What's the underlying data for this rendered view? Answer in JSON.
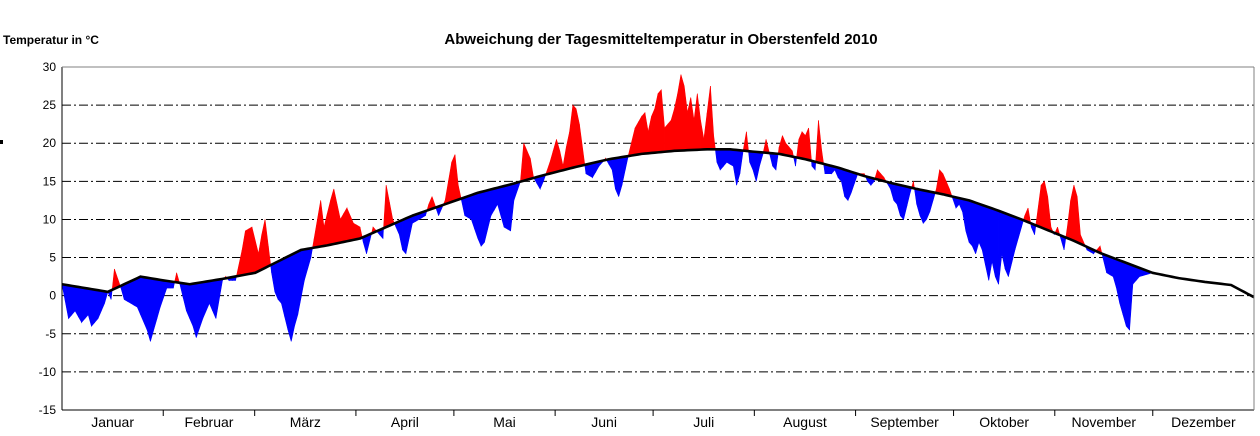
{
  "chart_data": {
    "type": "area",
    "title": "Abweichung der Tagesmitteltemperatur in Oberstenfeld 2010",
    "ylabel": "Temperatur in °C",
    "xlabel": "",
    "ylim": [
      -15,
      30
    ],
    "yticks": [
      30,
      25,
      20,
      15,
      10,
      5,
      0,
      -5,
      -10,
      -15
    ],
    "grid": true,
    "categories": [
      "Januar",
      "Februar",
      "März",
      "April",
      "Mai",
      "Juni",
      "Juli",
      "August",
      "September",
      "Oktober",
      "November",
      "Dezember"
    ],
    "days_in_month": [
      31,
      28,
      31,
      30,
      31,
      30,
      31,
      31,
      30,
      31,
      30,
      31
    ],
    "colors": {
      "above": "#ff0000",
      "below": "#0000ff",
      "mean_line": "#000000",
      "grid": "#000000",
      "axis": "#000000"
    },
    "series": [
      {
        "role": "mean",
        "points": [
          [
            1,
            1.5
          ],
          [
            15,
            0.5
          ],
          [
            25,
            2.5
          ],
          [
            32,
            2.0
          ],
          [
            40,
            1.5
          ],
          [
            50,
            2.2
          ],
          [
            60,
            3.0
          ],
          [
            67,
            4.5
          ],
          [
            74,
            6.0
          ],
          [
            82,
            6.6
          ],
          [
            92,
            7.5
          ],
          [
            100,
            9.0
          ],
          [
            108,
            10.5
          ],
          [
            118,
            12.0
          ],
          [
            128,
            13.5
          ],
          [
            138,
            14.6
          ],
          [
            148,
            15.8
          ],
          [
            158,
            16.9
          ],
          [
            168,
            17.9
          ],
          [
            178,
            18.6
          ],
          [
            188,
            19.0
          ],
          [
            198,
            19.2
          ],
          [
            205,
            19.2
          ],
          [
            212,
            18.9
          ],
          [
            220,
            18.6
          ],
          [
            228,
            17.9
          ],
          [
            238,
            16.8
          ],
          [
            246,
            15.7
          ],
          [
            254,
            14.8
          ],
          [
            262,
            14.0
          ],
          [
            270,
            13.3
          ],
          [
            278,
            12.5
          ],
          [
            286,
            11.3
          ],
          [
            294,
            10.0
          ],
          [
            302,
            8.6
          ],
          [
            310,
            7.2
          ],
          [
            318,
            5.6
          ],
          [
            326,
            4.3
          ],
          [
            334,
            3.0
          ],
          [
            342,
            2.3
          ],
          [
            350,
            1.8
          ],
          [
            358,
            1.4
          ],
          [
            365,
            -0.2
          ]
        ]
      },
      {
        "role": "actual",
        "points": [
          [
            1,
            1.5
          ],
          [
            3,
            -3.0
          ],
          [
            5,
            -2.0
          ],
          [
            7,
            -3.5
          ],
          [
            9,
            -2.5
          ],
          [
            10,
            -4.0
          ],
          [
            12,
            -3.0
          ],
          [
            14,
            -1.0
          ],
          [
            15,
            0.5
          ],
          [
            16,
            -0.5
          ],
          [
            17,
            3.5
          ],
          [
            19,
            1.0
          ],
          [
            20,
            -0.5
          ],
          [
            22,
            -1.0
          ],
          [
            24,
            -1.5
          ],
          [
            25,
            -2.5
          ],
          [
            27,
            -4.5
          ],
          [
            28,
            -6.0
          ],
          [
            30,
            -3.0
          ],
          [
            31,
            -1.5
          ],
          [
            33,
            1.0
          ],
          [
            35,
            1.0
          ],
          [
            36,
            3.0
          ],
          [
            37,
            1.5
          ],
          [
            39,
            -2.0
          ],
          [
            41,
            -4.0
          ],
          [
            42,
            -5.5
          ],
          [
            44,
            -3.0
          ],
          [
            46,
            -1.0
          ],
          [
            48,
            -3.0
          ],
          [
            50,
            2.0
          ],
          [
            51,
            2.5
          ],
          [
            52,
            2.0
          ],
          [
            54,
            2.0
          ],
          [
            56,
            6.0
          ],
          [
            57,
            8.5
          ],
          [
            59,
            9.0
          ],
          [
            61,
            5.5
          ],
          [
            62,
            8.0
          ],
          [
            63,
            10.0
          ],
          [
            65,
            3.0
          ],
          [
            66,
            0.5
          ],
          [
            67,
            -0.5
          ],
          [
            68,
            -1.0
          ],
          [
            70,
            -4.5
          ],
          [
            71,
            -6.0
          ],
          [
            72,
            -4.0
          ],
          [
            73,
            -2.5
          ],
          [
            75,
            2.0
          ],
          [
            77,
            5.0
          ],
          [
            79,
            10.0
          ],
          [
            80,
            12.5
          ],
          [
            81,
            9.0
          ],
          [
            83,
            12.5
          ],
          [
            84,
            14.0
          ],
          [
            86,
            10.0
          ],
          [
            88,
            11.5
          ],
          [
            90,
            9.5
          ],
          [
            92,
            9.0
          ],
          [
            93,
            7.0
          ],
          [
            94,
            5.5
          ],
          [
            96,
            9.0
          ],
          [
            97,
            8.5
          ],
          [
            99,
            7.5
          ],
          [
            100,
            14.5
          ],
          [
            102,
            10.0
          ],
          [
            104,
            8.0
          ],
          [
            105,
            6.0
          ],
          [
            106,
            5.5
          ],
          [
            108,
            9.5
          ],
          [
            110,
            10.0
          ],
          [
            112,
            10.5
          ],
          [
            113,
            12.0
          ],
          [
            114,
            13.0
          ],
          [
            116,
            10.5
          ],
          [
            118,
            12.5
          ],
          [
            119,
            15.0
          ],
          [
            120,
            17.5
          ],
          [
            121,
            18.5
          ],
          [
            122,
            14.5
          ],
          [
            124,
            10.5
          ],
          [
            126,
            10.0
          ],
          [
            128,
            7.5
          ],
          [
            129,
            6.5
          ],
          [
            130,
            7.0
          ],
          [
            132,
            10.5
          ],
          [
            134,
            12.0
          ],
          [
            136,
            9.0
          ],
          [
            138,
            8.5
          ],
          [
            139,
            12.5
          ],
          [
            141,
            15.0
          ],
          [
            142,
            20.0
          ],
          [
            144,
            18.0
          ],
          [
            145,
            15.5
          ],
          [
            147,
            14.0
          ],
          [
            148,
            15.0
          ],
          [
            150,
            17.5
          ],
          [
            151,
            19.0
          ],
          [
            152,
            20.5
          ],
          [
            153,
            19.0
          ],
          [
            154,
            17.0
          ],
          [
            155,
            19.5
          ],
          [
            156,
            21.5
          ],
          [
            157,
            25.0
          ],
          [
            158,
            24.5
          ],
          [
            159,
            22.5
          ],
          [
            161,
            16.0
          ],
          [
            163,
            15.5
          ],
          [
            165,
            17.0
          ],
          [
            167,
            18.0
          ],
          [
            169,
            16.5
          ],
          [
            170,
            14.0
          ],
          [
            171,
            13.0
          ],
          [
            172,
            14.5
          ],
          [
            174,
            18.5
          ],
          [
            176,
            22.0
          ],
          [
            178,
            23.5
          ],
          [
            179,
            24.0
          ],
          [
            180,
            21.5
          ],
          [
            181,
            23.5
          ],
          [
            182,
            24.5
          ],
          [
            183,
            26.5
          ],
          [
            184,
            27.0
          ],
          [
            185,
            22.0
          ],
          [
            187,
            23.0
          ],
          [
            188,
            24.5
          ],
          [
            189,
            26.5
          ],
          [
            190,
            29.0
          ],
          [
            191,
            27.5
          ],
          [
            192,
            24.0
          ],
          [
            193,
            26.0
          ],
          [
            194,
            23.0
          ],
          [
            195,
            26.5
          ],
          [
            196,
            23.0
          ],
          [
            197,
            20.5
          ],
          [
            198,
            24.0
          ],
          [
            199,
            27.5
          ],
          [
            200,
            21.0
          ],
          [
            201,
            17.5
          ],
          [
            202,
            16.5
          ],
          [
            204,
            17.5
          ],
          [
            206,
            17.0
          ],
          [
            207,
            14.5
          ],
          [
            208,
            16.0
          ],
          [
            209,
            19.0
          ],
          [
            210,
            21.5
          ],
          [
            211,
            17.5
          ],
          [
            212,
            16.5
          ],
          [
            213,
            15.0
          ],
          [
            214,
            17.0
          ],
          [
            215,
            18.5
          ],
          [
            216,
            20.5
          ],
          [
            218,
            17.0
          ],
          [
            219,
            16.5
          ],
          [
            220,
            19.5
          ],
          [
            221,
            21.0
          ],
          [
            222,
            20.0
          ],
          [
            224,
            19.0
          ],
          [
            225,
            17.0
          ],
          [
            226,
            20.5
          ],
          [
            227,
            21.5
          ],
          [
            228,
            21.0
          ],
          [
            229,
            22.0
          ],
          [
            230,
            17.0
          ],
          [
            231,
            16.5
          ],
          [
            232,
            23.0
          ],
          [
            233,
            19.0
          ],
          [
            234,
            16.0
          ],
          [
            236,
            16.0
          ],
          [
            237,
            16.5
          ],
          [
            238,
            15.5
          ],
          [
            239,
            15.0
          ],
          [
            240,
            13.0
          ],
          [
            241,
            12.5
          ],
          [
            242,
            13.5
          ],
          [
            244,
            16.0
          ],
          [
            246,
            16.0
          ],
          [
            247,
            15.0
          ],
          [
            248,
            14.5
          ],
          [
            249,
            15.0
          ],
          [
            250,
            16.5
          ],
          [
            251,
            16.0
          ],
          [
            252,
            15.5
          ],
          [
            254,
            14.0
          ],
          [
            255,
            12.5
          ],
          [
            256,
            12.0
          ],
          [
            257,
            10.5
          ],
          [
            258,
            10.0
          ],
          [
            260,
            13.5
          ],
          [
            261,
            15.0
          ],
          [
            262,
            12.0
          ],
          [
            263,
            10.5
          ],
          [
            264,
            9.5
          ],
          [
            265,
            10.0
          ],
          [
            266,
            11.0
          ],
          [
            268,
            14.0
          ],
          [
            269,
            16.5
          ],
          [
            270,
            16.0
          ],
          [
            272,
            14.0
          ],
          [
            274,
            11.5
          ],
          [
            275,
            12.0
          ],
          [
            276,
            11.0
          ],
          [
            277,
            8.5
          ],
          [
            278,
            7.0
          ],
          [
            279,
            6.5
          ],
          [
            280,
            5.5
          ],
          [
            281,
            7.0
          ],
          [
            282,
            6.0
          ],
          [
            283,
            4.0
          ],
          [
            284,
            2.0
          ],
          [
            285,
            4.5
          ],
          [
            286,
            2.5
          ],
          [
            287,
            1.5
          ],
          [
            288,
            5.5
          ],
          [
            289,
            3.5
          ],
          [
            290,
            2.5
          ],
          [
            292,
            6.0
          ],
          [
            294,
            9.0
          ],
          [
            295,
            10.5
          ],
          [
            296,
            11.5
          ],
          [
            297,
            9.0
          ],
          [
            298,
            8.0
          ],
          [
            300,
            14.5
          ],
          [
            301,
            15.0
          ],
          [
            302,
            13.0
          ],
          [
            303,
            9.0
          ],
          [
            304,
            8.0
          ],
          [
            305,
            9.0
          ],
          [
            306,
            7.5
          ],
          [
            307,
            6.0
          ],
          [
            308,
            9.0
          ],
          [
            309,
            12.5
          ],
          [
            310,
            14.5
          ],
          [
            311,
            13.0
          ],
          [
            312,
            8.0
          ],
          [
            314,
            6.0
          ],
          [
            316,
            5.5
          ],
          [
            317,
            6.0
          ],
          [
            318,
            6.5
          ],
          [
            320,
            3.0
          ],
          [
            322,
            2.5
          ],
          [
            323,
            1.0
          ],
          [
            324,
            -1.0
          ],
          [
            325,
            -2.5
          ],
          [
            326,
            -4.0
          ],
          [
            327,
            -4.5
          ],
          [
            328,
            1.5
          ],
          [
            330,
            2.5
          ],
          [
            334,
            3.0
          ],
          [
            342,
            2.3
          ],
          [
            350,
            1.8
          ],
          [
            358,
            1.4
          ],
          [
            365,
            -0.2
          ]
        ]
      }
    ]
  }
}
